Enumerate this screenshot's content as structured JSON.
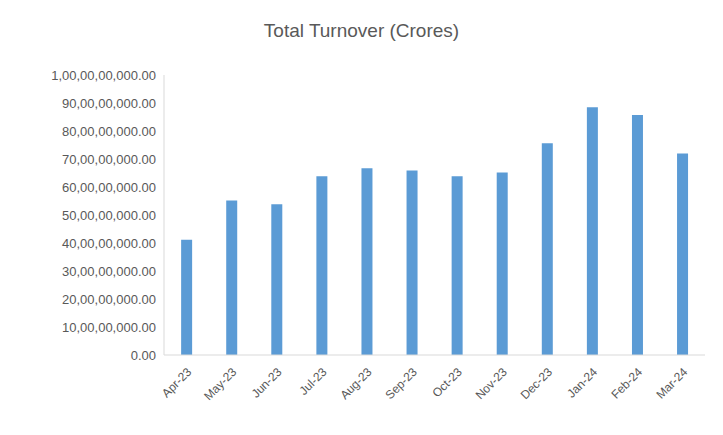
{
  "chart_data": {
    "type": "bar",
    "title": "Total Turnover (Crores)",
    "categories": [
      "Apr-23",
      "May-23",
      "Jun-23",
      "Jul-23",
      "Aug-23",
      "Sep-23",
      "Oct-23",
      "Nov-23",
      "Dec-23",
      "Jan-24",
      "Feb-24",
      "Mar-24"
    ],
    "values": [
      412000000,
      552000000,
      538000000,
      638000000,
      667000000,
      659000000,
      638000000,
      652000000,
      756000000,
      885000000,
      857000000,
      720000000
    ],
    "color": "#5b9bd5",
    "ylim": [
      0,
      1000000000
    ],
    "yticks": [
      {
        "value": 0,
        "label": "0.00"
      },
      {
        "value": 100000000,
        "label": "10,00,00,000.00"
      },
      {
        "value": 200000000,
        "label": "20,00,00,000.00"
      },
      {
        "value": 300000000,
        "label": "30,00,00,000.00"
      },
      {
        "value": 400000000,
        "label": "40,00,00,000.00"
      },
      {
        "value": 500000000,
        "label": "50,00,00,000.00"
      },
      {
        "value": 600000000,
        "label": "60,00,00,000.00"
      },
      {
        "value": 700000000,
        "label": "70,00,00,000.00"
      },
      {
        "value": 800000000,
        "label": "80,00,00,000.00"
      },
      {
        "value": 900000000,
        "label": "90,00,00,000.00"
      },
      {
        "value": 1000000000,
        "label": "1,00,00,00,000.00"
      }
    ],
    "grid": false
  }
}
